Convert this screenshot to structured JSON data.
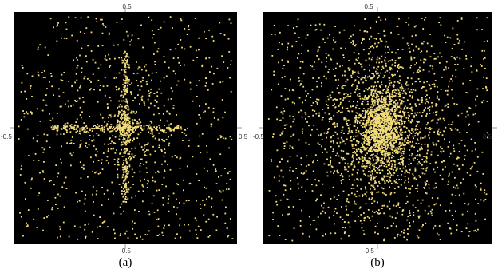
{
  "chart_data": [
    {
      "type": "scatter",
      "caption": "(a)",
      "xlim": [
        -0.5,
        0.5
      ],
      "ylim": [
        -0.5,
        0.5
      ],
      "tick_labels": {
        "top": "0.5",
        "bottom": "-0.5",
        "left": "-0.5",
        "right": "0.5"
      },
      "background": "#000000",
      "point_color": "#f2dc7a",
      "grid": false,
      "legend": "none",
      "distribution": "uniform scatter with dense cross-shaped concentration along x=0 and y=0",
      "series": [
        {
          "component": "uniform",
          "count": 700,
          "x_range": [
            -0.48,
            0.48
          ],
          "y_range": [
            -0.48,
            0.48
          ]
        },
        {
          "component": "vertical-line",
          "count": 260,
          "x_center": 0.0,
          "x_spread": 0.008,
          "y_range": [
            -0.33,
            0.33
          ]
        },
        {
          "component": "horizontal-line",
          "count": 220,
          "y_center": 0.0,
          "y_spread": 0.008,
          "x_range": [
            -0.33,
            0.27
          ]
        },
        {
          "component": "center-cluster",
          "count": 120,
          "x_center": 0.0,
          "y_center": 0.0,
          "sd": 0.03
        },
        {
          "component": "near-axis-scatter",
          "count": 260,
          "x_center": 0.0,
          "y_center": 0.0,
          "sd": 0.15
        }
      ]
    },
    {
      "type": "scatter",
      "caption": "(b)",
      "xlim": [
        -0.5,
        0.5
      ],
      "ylim": [
        -0.5,
        0.5
      ],
      "tick_labels": {
        "top": "0.5",
        "bottom": "-0.5",
        "left": "-0.5",
        "right": "0.5"
      },
      "background": "#000000",
      "point_color": "#f2dc7a",
      "grid": false,
      "legend": "none",
      "distribution": "uniform scatter with dense central Gaussian blob",
      "series": [
        {
          "component": "uniform",
          "count": 750,
          "x_range": [
            -0.48,
            0.48
          ],
          "y_range": [
            -0.48,
            0.48
          ]
        },
        {
          "component": "core-blob",
          "count": 1100,
          "x_center": 0.02,
          "y_center": 0.0,
          "x_sd": 0.05,
          "y_sd": 0.09
        },
        {
          "component": "halo",
          "count": 1300,
          "x_center": 0.02,
          "y_center": -0.02,
          "x_sd": 0.16,
          "y_sd": 0.2
        }
      ]
    }
  ]
}
